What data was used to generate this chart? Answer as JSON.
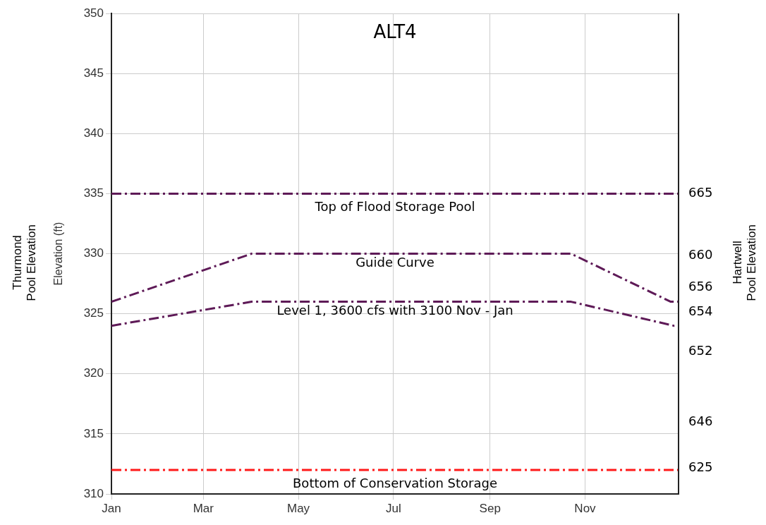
{
  "chart_data": {
    "type": "line",
    "title": "ALT4",
    "ylabel": "Elevation (ft)",
    "y2label": "Hartwell\nPool Elevation",
    "annotations": [
      "Thurmond\nPool Elevation",
      "665",
      "660",
      "656",
      "654",
      "652",
      "646",
      "625"
    ],
    "xlim": [
      "--01-01",
      "--12-31"
    ],
    "xticks": [
      {
        "value": "--01-01",
        "label": "Jan"
      },
      {
        "value": "--03-01",
        "label": "Mar"
      },
      {
        "value": "--05-01",
        "label": "May"
      },
      {
        "value": "--07-01",
        "label": "Jul"
      },
      {
        "value": "--09-01",
        "label": "Sep"
      },
      {
        "value": "--11-01",
        "label": "Nov"
      }
    ],
    "ylim": [
      310,
      350
    ],
    "yticks": [
      310,
      315,
      320,
      325,
      330,
      335,
      340,
      345,
      350
    ],
    "series": [
      {
        "name": "Guide Curve",
        "color": "#5e1a57",
        "x": [
          "--01-01",
          "--04-01",
          "--10-23",
          "--12-26",
          "--12-31"
        ],
        "values": [
          326,
          330,
          330,
          326,
          326
        ]
      },
      {
        "name": "Level 1, 3600 cfs with 3100 Nov - Jan",
        "color": "#5e1a57",
        "x": [
          "--01-01",
          "--04-01",
          "--10-23",
          "--12-28",
          "--12-31"
        ],
        "values": [
          324,
          326,
          326,
          324,
          324
        ]
      }
    ],
    "ref_lines": [
      {
        "axis": "y",
        "value": 335,
        "label": "Top of Flood Storage Pool",
        "color": "#5e1a57",
        "line_style": "dashed"
      },
      {
        "axis": "y",
        "value": 312,
        "label": "Bottom of Conservation Storage",
        "color": "#ff1a1a",
        "line_style": "dashed"
      }
    ],
    "grid": true,
    "legend": false,
    "marker": "none",
    "line_style": "dashed"
  }
}
